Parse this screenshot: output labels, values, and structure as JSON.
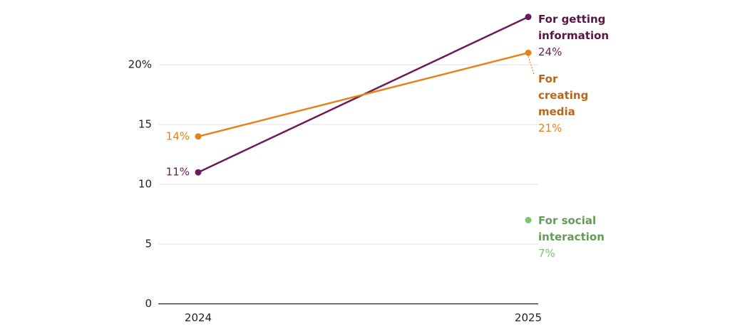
{
  "chart_data": {
    "type": "line",
    "categories": [
      "2024",
      "2025"
    ],
    "series": [
      {
        "name": "For getting information",
        "color": "#6e1a5a",
        "values": [
          11,
          24
        ],
        "value_labels": [
          "11%",
          "24%"
        ]
      },
      {
        "name": "For creating media",
        "color": "#e8801a",
        "values": [
          14,
          21
        ],
        "value_labels": [
          "14%",
          "21%"
        ]
      },
      {
        "name": "For social interaction",
        "color": "#7cc46a",
        "values": [
          null,
          7
        ],
        "value_labels": [
          null,
          "7%"
        ]
      }
    ],
    "ylim": [
      0,
      25
    ],
    "yticks": [
      0,
      5,
      10,
      15,
      {
        "value": 20,
        "label": "20%"
      }
    ],
    "grid": true
  }
}
